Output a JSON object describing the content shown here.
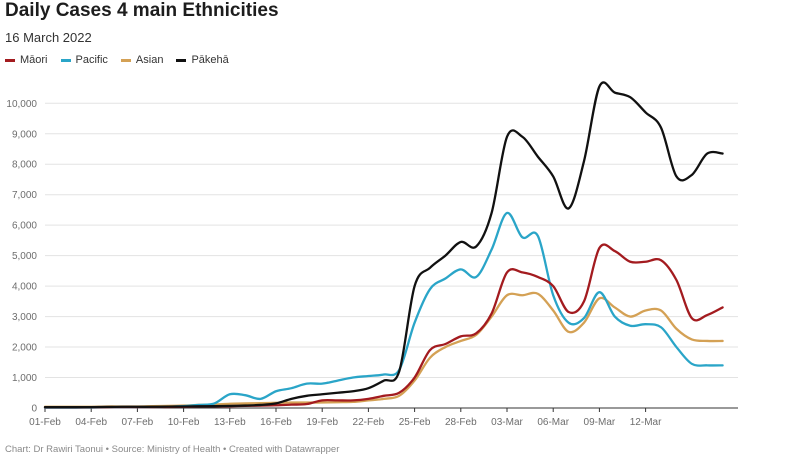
{
  "chart_data": {
    "type": "line",
    "title": "Daily Cases 4 main Ethnicities",
    "subtitle": "16 March 2022",
    "source": "Chart: Dr Rawiri Taonui • Source: Ministry of Health • Created with Datawrapper",
    "x_start": 0,
    "x_end": 45,
    "x_ticks": [
      {
        "day": 0,
        "label": "01-Feb"
      },
      {
        "day": 3,
        "label": "04-Feb"
      },
      {
        "day": 6,
        "label": "07-Feb"
      },
      {
        "day": 9,
        "label": "10-Feb"
      },
      {
        "day": 12,
        "label": "13-Feb"
      },
      {
        "day": 15,
        "label": "16-Feb"
      },
      {
        "day": 18,
        "label": "19-Feb"
      },
      {
        "day": 21,
        "label": "22-Feb"
      },
      {
        "day": 24,
        "label": "25-Feb"
      },
      {
        "day": 27,
        "label": "28-Feb"
      },
      {
        "day": 30,
        "label": "03-Mar"
      },
      {
        "day": 33,
        "label": "06-Mar"
      },
      {
        "day": 36,
        "label": "09-Mar"
      },
      {
        "day": 39,
        "label": "12-Mar"
      }
    ],
    "y_ticks": [
      {
        "value": 0,
        "label": "0"
      },
      {
        "value": 1000,
        "label": "1,000"
      },
      {
        "value": 2000,
        "label": "2,000"
      },
      {
        "value": 3000,
        "label": "3,000"
      },
      {
        "value": 4000,
        "label": "4,000"
      },
      {
        "value": 5000,
        "label": "5,000"
      },
      {
        "value": 6000,
        "label": "6,000"
      },
      {
        "value": 7000,
        "label": "7,000"
      },
      {
        "value": 8000,
        "label": "8,000"
      },
      {
        "value": 9000,
        "label": "9,000"
      },
      {
        "value": 10000,
        "label": "10,000"
      }
    ],
    "ylim": [
      0,
      10600
    ],
    "grid": true,
    "legend_position": "top-left",
    "series": [
      {
        "name": "Māori",
        "color": "#a31b1f",
        "values": [
          20,
          20,
          20,
          25,
          25,
          30,
          30,
          30,
          35,
          40,
          50,
          55,
          60,
          70,
          80,
          90,
          110,
          130,
          250,
          250,
          250,
          300,
          400,
          500,
          1000,
          1900,
          2100,
          2350,
          2450,
          3100,
          4450,
          4450,
          4300,
          4000,
          3150,
          3500,
          5250,
          5150,
          4800,
          4800,
          4850,
          4200,
          2950,
          3050,
          3300
        ]
      },
      {
        "name": "Pacific",
        "color": "#2aa5c8",
        "values": [
          10,
          10,
          10,
          15,
          20,
          20,
          25,
          30,
          40,
          60,
          100,
          150,
          450,
          420,
          300,
          550,
          650,
          800,
          800,
          900,
          1000,
          1050,
          1100,
          1250,
          2800,
          3900,
          4250,
          4550,
          4300,
          5200,
          6400,
          5600,
          5650,
          3700,
          2800,
          2950,
          3800,
          3000,
          2700,
          2750,
          2650,
          2000,
          1450,
          1400,
          1400
        ]
      },
      {
        "name": "Asian",
        "color": "#d4a155",
        "values": [
          40,
          40,
          40,
          40,
          50,
          50,
          50,
          60,
          70,
          80,
          100,
          110,
          140,
          150,
          160,
          170,
          180,
          180,
          180,
          190,
          200,
          250,
          300,
          400,
          900,
          1650,
          2000,
          2200,
          2400,
          3000,
          3700,
          3700,
          3750,
          3200,
          2500,
          2800,
          3600,
          3300,
          3000,
          3200,
          3200,
          2600,
          2250,
          2200,
          2200
        ]
      },
      {
        "name": "Pākehā",
        "color": "#111111",
        "values": [
          30,
          30,
          30,
          30,
          35,
          40,
          40,
          40,
          45,
          50,
          55,
          60,
          70,
          80,
          100,
          150,
          300,
          400,
          450,
          500,
          550,
          650,
          900,
          1200,
          4000,
          4600,
          5000,
          5450,
          5300,
          6400,
          8900,
          8900,
          8250,
          7600,
          6550,
          8100,
          10550,
          10350,
          10200,
          9700,
          9200,
          7600,
          7650,
          8350,
          8350
        ]
      }
    ]
  }
}
